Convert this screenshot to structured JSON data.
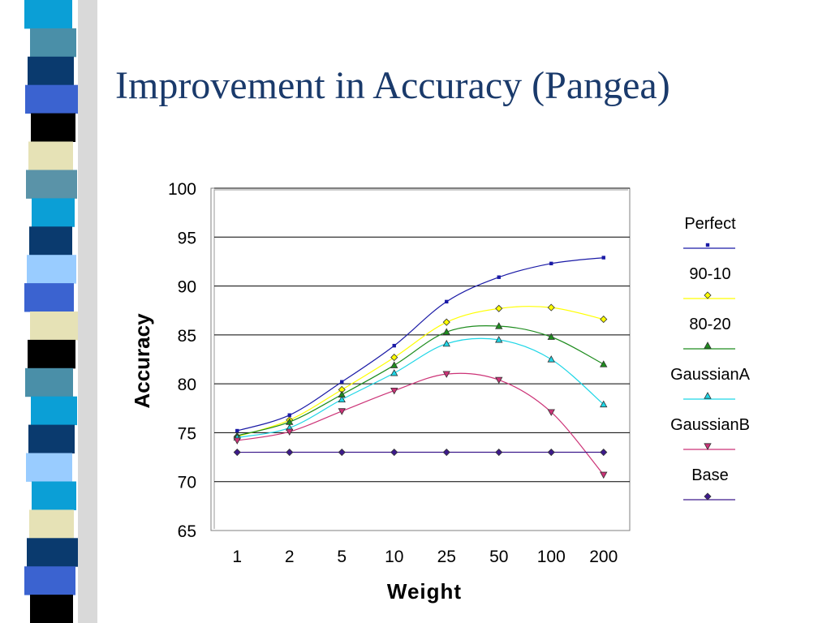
{
  "slide": {
    "title": "Improvement in Accuracy (Pangea)"
  },
  "chart_data": {
    "type": "line",
    "xlabel": "Weight",
    "ylabel": "Accuracy",
    "categories": [
      "1",
      "2",
      "5",
      "10",
      "25",
      "50",
      "100",
      "200"
    ],
    "ylim": [
      65,
      100
    ],
    "yticks": [
      65,
      70,
      75,
      80,
      85,
      90,
      95,
      100
    ],
    "grid": "horizontal",
    "legend_position": "right",
    "series": [
      {
        "name": "Perfect",
        "color": "#1a1aa6",
        "marker": "square",
        "values": [
          75.2,
          76.8,
          80.2,
          83.9,
          88.4,
          90.9,
          92.3,
          92.9
        ]
      },
      {
        "name": "90-10",
        "color": "#ffff00",
        "marker": "diamond",
        "values": [
          74.6,
          76.3,
          79.4,
          82.7,
          86.3,
          87.7,
          87.8,
          86.6
        ]
      },
      {
        "name": "80-20",
        "color": "#1e8c1e",
        "marker": "triangle-up",
        "values": [
          74.7,
          76.1,
          78.9,
          81.9,
          85.3,
          85.9,
          84.8,
          82.0
        ]
      },
      {
        "name": "GaussianA",
        "color": "#1ed6e6",
        "marker": "triangle-up",
        "values": [
          74.5,
          75.5,
          78.4,
          81.1,
          84.1,
          84.5,
          82.5,
          77.9
        ]
      },
      {
        "name": "GaussianB",
        "color": "#cc3377",
        "marker": "triangle-down",
        "values": [
          74.2,
          75.1,
          77.2,
          79.3,
          81.0,
          80.4,
          77.1,
          70.7
        ]
      },
      {
        "name": "Base",
        "color": "#3d1a8c",
        "marker": "diamond",
        "values": [
          73.0,
          73.0,
          73.0,
          73.0,
          73.0,
          73.0,
          73.0,
          73.0
        ]
      }
    ]
  },
  "decor": {
    "stripe_colors": [
      "#0b9fd6",
      "#4a8fa8",
      "#0a3a6e",
      "#3b63d0",
      "#000000",
      "#e6e2b6",
      "#5a93a8",
      "#0b9fd6",
      "#0a3a6e",
      "#99ccff",
      "#3b63d0",
      "#e6e2b6",
      "#000000",
      "#4a8fa8",
      "#0b9fd6",
      "#0a3a6e",
      "#99ccff",
      "#0b9fd6",
      "#e6e2b6",
      "#0a3a6e",
      "#3b63d0",
      "#000000"
    ]
  }
}
